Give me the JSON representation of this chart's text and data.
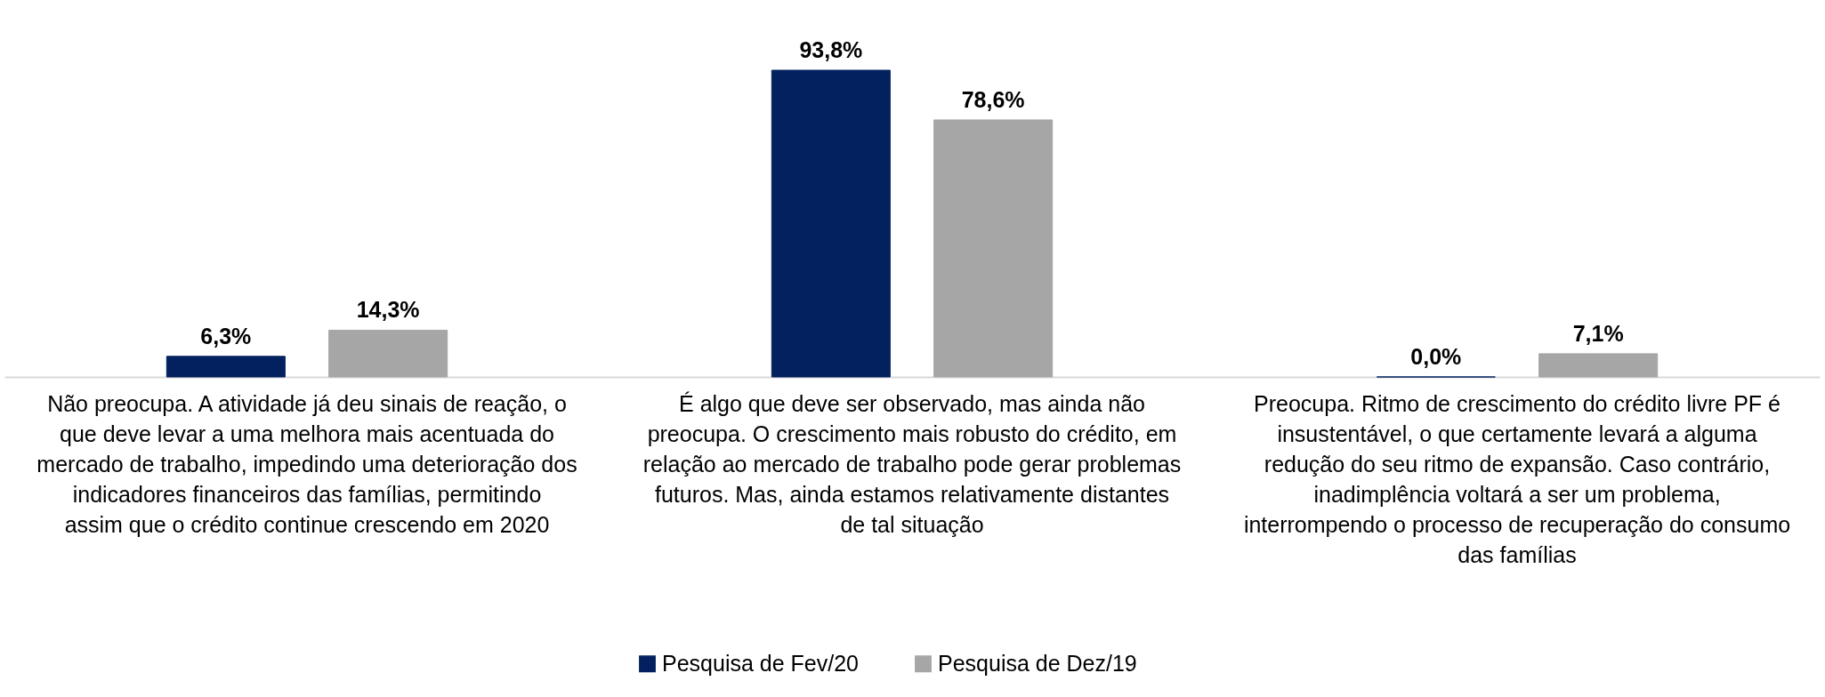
{
  "chart_data": {
    "type": "bar",
    "categories": [
      "Não preocupa. A atividade já deu sinais de reação, o que deve levar a uma melhora mais acentuada do mercado de trabalho, impedindo uma deterioração dos indicadores financeiros das famílias, permitindo assim que o crédito continue crescendo em 2020",
      "É algo que deve ser observado, mas ainda não preocupa. O crescimento mais robusto do crédito, em relação ao mercado de trabalho pode gerar problemas futuros. Mas, ainda estamos relativamente distantes de tal situação",
      "Preocupa. Ritmo de crescimento do crédito livre PF é insustentável, o que certamente levará a alguma redução do seu ritmo de expansão. Caso contrário, inadimplência voltará a ser um problema, interrompendo o processo de recuperação do consumo das famílias"
    ],
    "series": [
      {
        "name": "Pesquisa de Fev/20",
        "color": "#03215f",
        "values": [
          6.3,
          93.8,
          0.0
        ],
        "value_labels": [
          "6,3%",
          "93,8%",
          "0,0%"
        ]
      },
      {
        "name": "Pesquisa de Dez/19",
        "color": "#a6a6a6",
        "values": [
          14.3,
          78.6,
          7.1
        ],
        "value_labels": [
          "14,3%",
          "78,6%",
          "7,1%"
        ]
      }
    ],
    "legend": "bottom",
    "grid": false
  }
}
